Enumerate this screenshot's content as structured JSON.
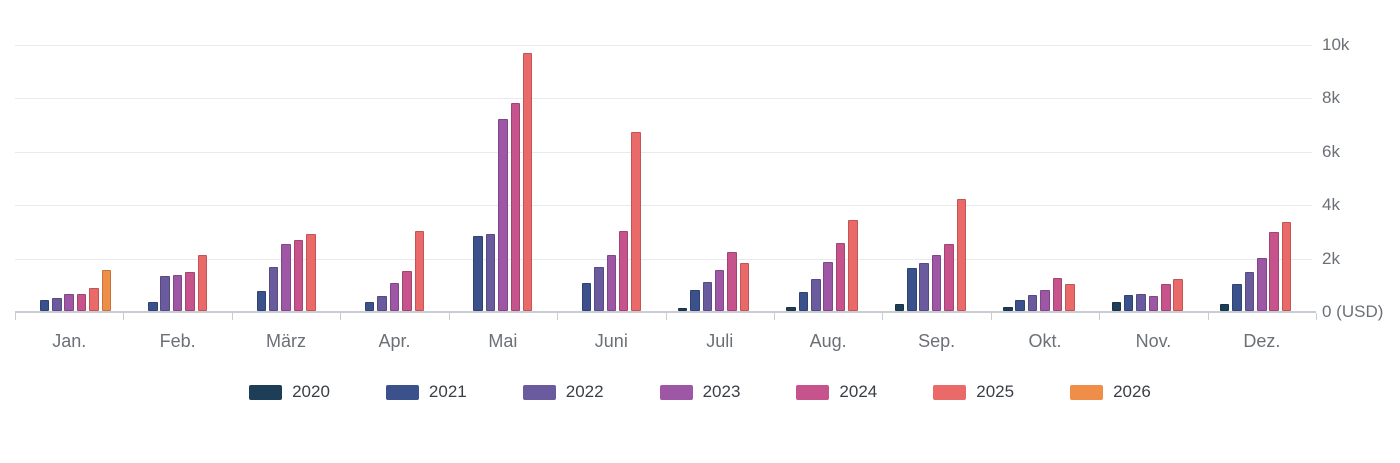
{
  "chart_data": {
    "type": "bar",
    "title": "",
    "unit_label": "0 (USD)",
    "grid": true,
    "legend_position": "bottom",
    "ylim": [
      0,
      10000
    ],
    "categories": [
      "Jan.",
      "Feb.",
      "März",
      "Apr.",
      "Mai",
      "Juni",
      "Juli",
      "Aug.",
      "Sep.",
      "Okt.",
      "Nov.",
      "Dez."
    ],
    "y_axis": {
      "ticks": [
        {
          "label": "10k",
          "value": 10000
        },
        {
          "label": "8k",
          "value": 8000
        },
        {
          "label": "6k",
          "value": 6000
        },
        {
          "label": "4k",
          "value": 4000
        },
        {
          "label": "2k",
          "value": 2000
        },
        {
          "label": "0 (USD)",
          "value": 0
        }
      ]
    },
    "series": [
      {
        "name": "2020",
        "color": "#1e3d57",
        "values": [
          null,
          null,
          null,
          null,
          null,
          null,
          100,
          150,
          250,
          150,
          350,
          250
        ]
      },
      {
        "name": "2021",
        "color": "#3a518c",
        "values": [
          400,
          350,
          750,
          350,
          2800,
          1050,
          800,
          700,
          1600,
          400,
          600,
          1000
        ]
      },
      {
        "name": "2022",
        "color": "#695b9d",
        "values": [
          500,
          1300,
          1650,
          550,
          2900,
          1650,
          1100,
          1200,
          1800,
          600,
          650,
          1450
        ]
      },
      {
        "name": "2023",
        "color": "#9d57a4",
        "values": [
          650,
          1350,
          2500,
          1050,
          7200,
          2100,
          1550,
          1850,
          2100,
          800,
          550,
          2000
        ]
      },
      {
        "name": "2024",
        "color": "#c6538c",
        "values": [
          650,
          1450,
          2650,
          1500,
          7800,
          3000,
          2200,
          2550,
          2500,
          1250,
          1000,
          2950
        ]
      },
      {
        "name": "2025",
        "color": "#e96a68",
        "values": [
          850,
          2100,
          2900,
          3000,
          9650,
          6700,
          1800,
          3400,
          4200,
          1000,
          1200,
          3350
        ]
      },
      {
        "name": "2026",
        "color": "#ef8e49",
        "values": [
          1550,
          null,
          null,
          null,
          null,
          null,
          null,
          null,
          null,
          null,
          null,
          null
        ]
      }
    ]
  }
}
